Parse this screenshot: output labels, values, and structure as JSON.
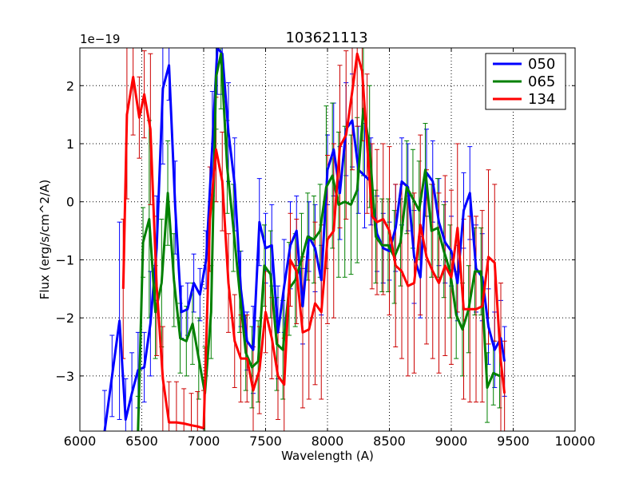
{
  "chart_data": {
    "type": "line",
    "title": "103621113",
    "xlabel": "Wavelength (A)",
    "ylabel": "Flux (erg/s/cm^2/A)",
    "y_offset_label": "1e−19",
    "xlim": [
      6000,
      10000
    ],
    "ylim": [
      -3.95,
      2.65
    ],
    "grid": true,
    "grid_style": "dotted",
    "legend_position": "top-right",
    "x_ticks": [
      6000,
      6500,
      7000,
      7500,
      8000,
      8500,
      9000,
      9500,
      10000
    ],
    "x_tick_labels": [
      "6000",
      "6500",
      "7000",
      "7500",
      "8000",
      "8500",
      "9000",
      "9500",
      "10000"
    ],
    "y_ticks": [
      -3,
      -2,
      -1,
      0,
      1,
      2
    ],
    "y_tick_labels": [
      "−3",
      "−2",
      "−1",
      "0",
      "1",
      "2"
    ],
    "series": [
      {
        "name": "050",
        "color": "#0000ff",
        "errorbar_color": "#0000ff",
        "x": [
          6200,
          6260,
          6320,
          6370,
          6420,
          6470,
          6520,
          6570,
          6620,
          6670,
          6720,
          6770,
          6820,
          6870,
          6920,
          6970,
          7020,
          7070,
          7110,
          7150,
          7200,
          7250,
          7300,
          7350,
          7400,
          7450,
          7500,
          7550,
          7600,
          7650,
          7700,
          7750,
          7800,
          7850,
          7900,
          7950,
          8000,
          8050,
          8100,
          8150,
          8200,
          8250,
          8300,
          8350,
          8400,
          8450,
          8500,
          8550,
          8600,
          8650,
          8700,
          8750,
          8800,
          8850,
          8900,
          8950,
          9000,
          9050,
          9100,
          9150,
          9200,
          9250,
          9300,
          9350,
          9400,
          9430
        ],
        "y": [
          -3.95,
          -3.0,
          -2.05,
          -3.75,
          -3.3,
          -2.9,
          -2.85,
          -2.1,
          -0.8,
          1.95,
          2.35,
          -0.1,
          -1.9,
          -1.85,
          -1.4,
          -1.6,
          -1.0,
          1.0,
          2.65,
          2.55,
          1.2,
          0.3,
          -1.5,
          -2.4,
          -2.55,
          -0.35,
          -0.8,
          -0.75,
          -2.25,
          -1.45,
          -0.75,
          -0.5,
          -1.8,
          -0.6,
          -0.8,
          -1.35,
          0.55,
          0.9,
          0.15,
          1.25,
          1.4,
          0.55,
          0.45,
          0.35,
          -0.55,
          -0.8,
          -0.85,
          -0.45,
          0.35,
          0.25,
          -0.95,
          -1.3,
          0.5,
          0.35,
          -0.35,
          -0.7,
          -0.85,
          -1.4,
          -0.15,
          0.15,
          -1.15,
          -1.3,
          -2.15,
          -2.55,
          -2.35,
          -2.75
        ],
        "err": [
          0.7,
          0.7,
          1.7,
          0.7,
          0.7,
          0.65,
          0.6,
          0.9,
          0.9,
          1.3,
          0.6,
          0.8,
          0.45,
          0.45,
          0.5,
          0.45,
          0.5,
          0.9,
          0.8,
          0.7,
          0.85,
          0.8,
          0.65,
          0.5,
          0.75,
          0.75,
          0.6,
          0.7,
          0.8,
          0.8,
          0.75,
          0.6,
          0.65,
          0.6,
          0.75,
          0.6,
          0.6,
          0.8,
          0.8,
          0.8,
          0.8,
          0.75,
          0.9,
          0.75,
          0.65,
          0.6,
          0.5,
          0.75,
          0.75,
          0.75,
          0.8,
          0.7,
          0.75,
          0.7,
          0.75,
          0.7,
          0.6,
          0.65,
          0.65,
          0.8,
          0.75,
          0.75,
          0.65,
          0.65,
          0.65,
          0.6
        ]
      },
      {
        "name": "065",
        "color": "#008000",
        "errorbar_color": "#008000",
        "x": [
          6470,
          6510,
          6560,
          6610,
          6660,
          6710,
          6760,
          6810,
          6860,
          6910,
          6960,
          7010,
          7060,
          7100,
          7140,
          7190,
          7240,
          7290,
          7340,
          7390,
          7440,
          7490,
          7540,
          7590,
          7640,
          7690,
          7740,
          7790,
          7840,
          7890,
          7940,
          7990,
          8040,
          8090,
          8140,
          8190,
          8240,
          8290,
          8340,
          8390,
          8440,
          8490,
          8540,
          8590,
          8640,
          8690,
          8740,
          8790,
          8840,
          8890,
          8940,
          8990,
          9040,
          9090,
          9140,
          9190,
          9240,
          9290,
          9340,
          9390
        ],
        "y": [
          -3.95,
          -0.7,
          -0.3,
          -1.9,
          -1.4,
          0.15,
          -1.35,
          -2.35,
          -2.4,
          -2.1,
          -2.7,
          -3.3,
          -1.9,
          2.15,
          2.55,
          0.6,
          -0.45,
          -1.55,
          -2.6,
          -2.85,
          -2.75,
          -1.1,
          -1.25,
          -2.45,
          -2.55,
          -1.5,
          -1.35,
          -1.0,
          -0.6,
          -0.65,
          -0.5,
          0.25,
          0.45,
          -0.05,
          0.0,
          -0.05,
          0.2,
          1.6,
          0.95,
          -0.6,
          -0.75,
          -0.75,
          -0.95,
          -0.7,
          0.25,
          0.05,
          -0.15,
          0.55,
          -0.5,
          -0.45,
          -0.85,
          -1.2,
          -1.95,
          -2.2,
          -1.85,
          -1.2,
          -1.2,
          -3.2,
          -2.95,
          -3.0
        ],
        "err": [
          0.6,
          0.6,
          1.7,
          0.8,
          1.1,
          0.9,
          0.8,
          0.6,
          0.6,
          0.7,
          0.7,
          0.8,
          0.8,
          0.9,
          0.95,
          0.8,
          0.75,
          0.7,
          0.65,
          0.7,
          0.7,
          0.7,
          0.75,
          0.8,
          0.85,
          0.8,
          0.8,
          0.8,
          0.75,
          0.75,
          0.8,
          1.4,
          1.25,
          1.25,
          1.3,
          1.2,
          1.25,
          1.15,
          1.05,
          0.8,
          0.8,
          0.8,
          0.8,
          0.75,
          0.8,
          0.85,
          0.85,
          0.8,
          0.8,
          0.85,
          0.8,
          0.8,
          0.75,
          0.8,
          0.75,
          0.75,
          0.75,
          0.6,
          0.55,
          0.55
        ]
      },
      {
        "name": "134",
        "color": "#ff0000",
        "errorbar_color": "#cc0000",
        "x": [
          6350,
          6380,
          6430,
          6480,
          6520,
          6570,
          6620,
          6670,
          6720,
          6780,
          6840,
          6900,
          6950,
          7000,
          7050,
          7100,
          7150,
          7200,
          7250,
          7300,
          7350,
          7400,
          7450,
          7500,
          7550,
          7600,
          7650,
          7700,
          7750,
          7800,
          7850,
          7900,
          7950,
          8000,
          8050,
          8100,
          8150,
          8200,
          8240,
          8280,
          8320,
          8360,
          8400,
          8450,
          8500,
          8550,
          8600,
          8650,
          8700,
          8750,
          8800,
          8850,
          8900,
          8950,
          9000,
          9050,
          9100,
          9150,
          9200,
          9250,
          9300,
          9350,
          9400,
          9430
        ],
        "y": [
          -1.5,
          1.5,
          2.15,
          1.45,
          1.85,
          1.25,
          -1.45,
          -3.05,
          -3.8,
          -3.8,
          -3.82,
          -3.85,
          -3.87,
          -3.9,
          -0.3,
          0.9,
          0.35,
          -1.4,
          -2.4,
          -2.7,
          -2.7,
          -3.25,
          -2.9,
          -1.9,
          -2.35,
          -3.0,
          -3.15,
          -1.0,
          -1.2,
          -2.25,
          -2.2,
          -1.75,
          -1.9,
          -0.65,
          -0.5,
          0.95,
          1.15,
          1.9,
          2.55,
          2.25,
          1.0,
          -0.25,
          -0.35,
          -0.3,
          -0.5,
          -1.1,
          -1.2,
          -1.45,
          -1.4,
          -0.4,
          -0.95,
          -1.2,
          -1.4,
          -1.1,
          -1.3,
          -0.45,
          -1.85,
          -1.85,
          -1.85,
          -1.8,
          -0.95,
          -1.05,
          -2.75,
          -3.3
        ],
        "err": [
          1.2,
          1.45,
          1.0,
          0.7,
          0.75,
          1.3,
          1.2,
          0.9,
          0.7,
          0.7,
          0.6,
          0.55,
          0.6,
          0.65,
          0.9,
          0.9,
          0.85,
          0.85,
          0.8,
          0.75,
          0.75,
          0.75,
          0.75,
          0.7,
          0.7,
          0.75,
          0.8,
          0.8,
          0.9,
          1.3,
          1.2,
          1.4,
          1.5,
          1.45,
          1.5,
          1.4,
          1.45,
          1.35,
          1.25,
          1.2,
          1.2,
          1.25,
          1.25,
          1.3,
          1.45,
          1.4,
          1.5,
          1.55,
          1.55,
          1.55,
          1.5,
          1.5,
          1.55,
          1.55,
          1.5,
          1.45,
          1.55,
          1.6,
          1.6,
          1.65,
          1.5,
          1.35,
          1.35,
          0.9
        ]
      }
    ]
  }
}
